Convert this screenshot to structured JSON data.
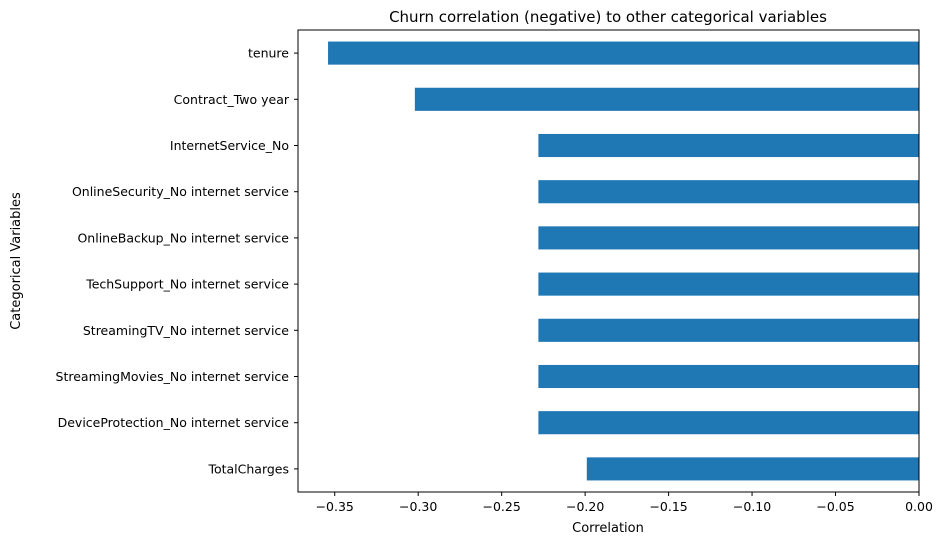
{
  "chart_data": {
    "type": "bar",
    "orientation": "horizontal",
    "title": "Churn correlation (negative) to other categorical variables",
    "xlabel": "Correlation",
    "ylabel": "Categorical Variables",
    "categories": [
      "tenure",
      "Contract_Two year",
      "InternetService_No",
      "OnlineSecurity_No internet service",
      "OnlineBackup_No internet service",
      "TechSupport_No internet service",
      "StreamingTV_No internet service",
      "StreamingMovies_No internet service",
      "DeviceProtection_No internet service",
      "TotalCharges"
    ],
    "values": [
      -0.354,
      -0.302,
      -0.228,
      -0.228,
      -0.228,
      -0.228,
      -0.228,
      -0.228,
      -0.228,
      -0.199
    ],
    "xlim": [
      -0.372,
      0.0
    ],
    "xticks": [
      "−0.35",
      "−0.30",
      "−0.25",
      "−0.20",
      "−0.15",
      "−0.10",
      "−0.05",
      "0.00"
    ],
    "xtick_values": [
      -0.35,
      -0.3,
      -0.25,
      -0.2,
      -0.15,
      -0.1,
      -0.05,
      0.0
    ],
    "bar_color": "#1f77b4",
    "grid": false,
    "legend": false
  }
}
